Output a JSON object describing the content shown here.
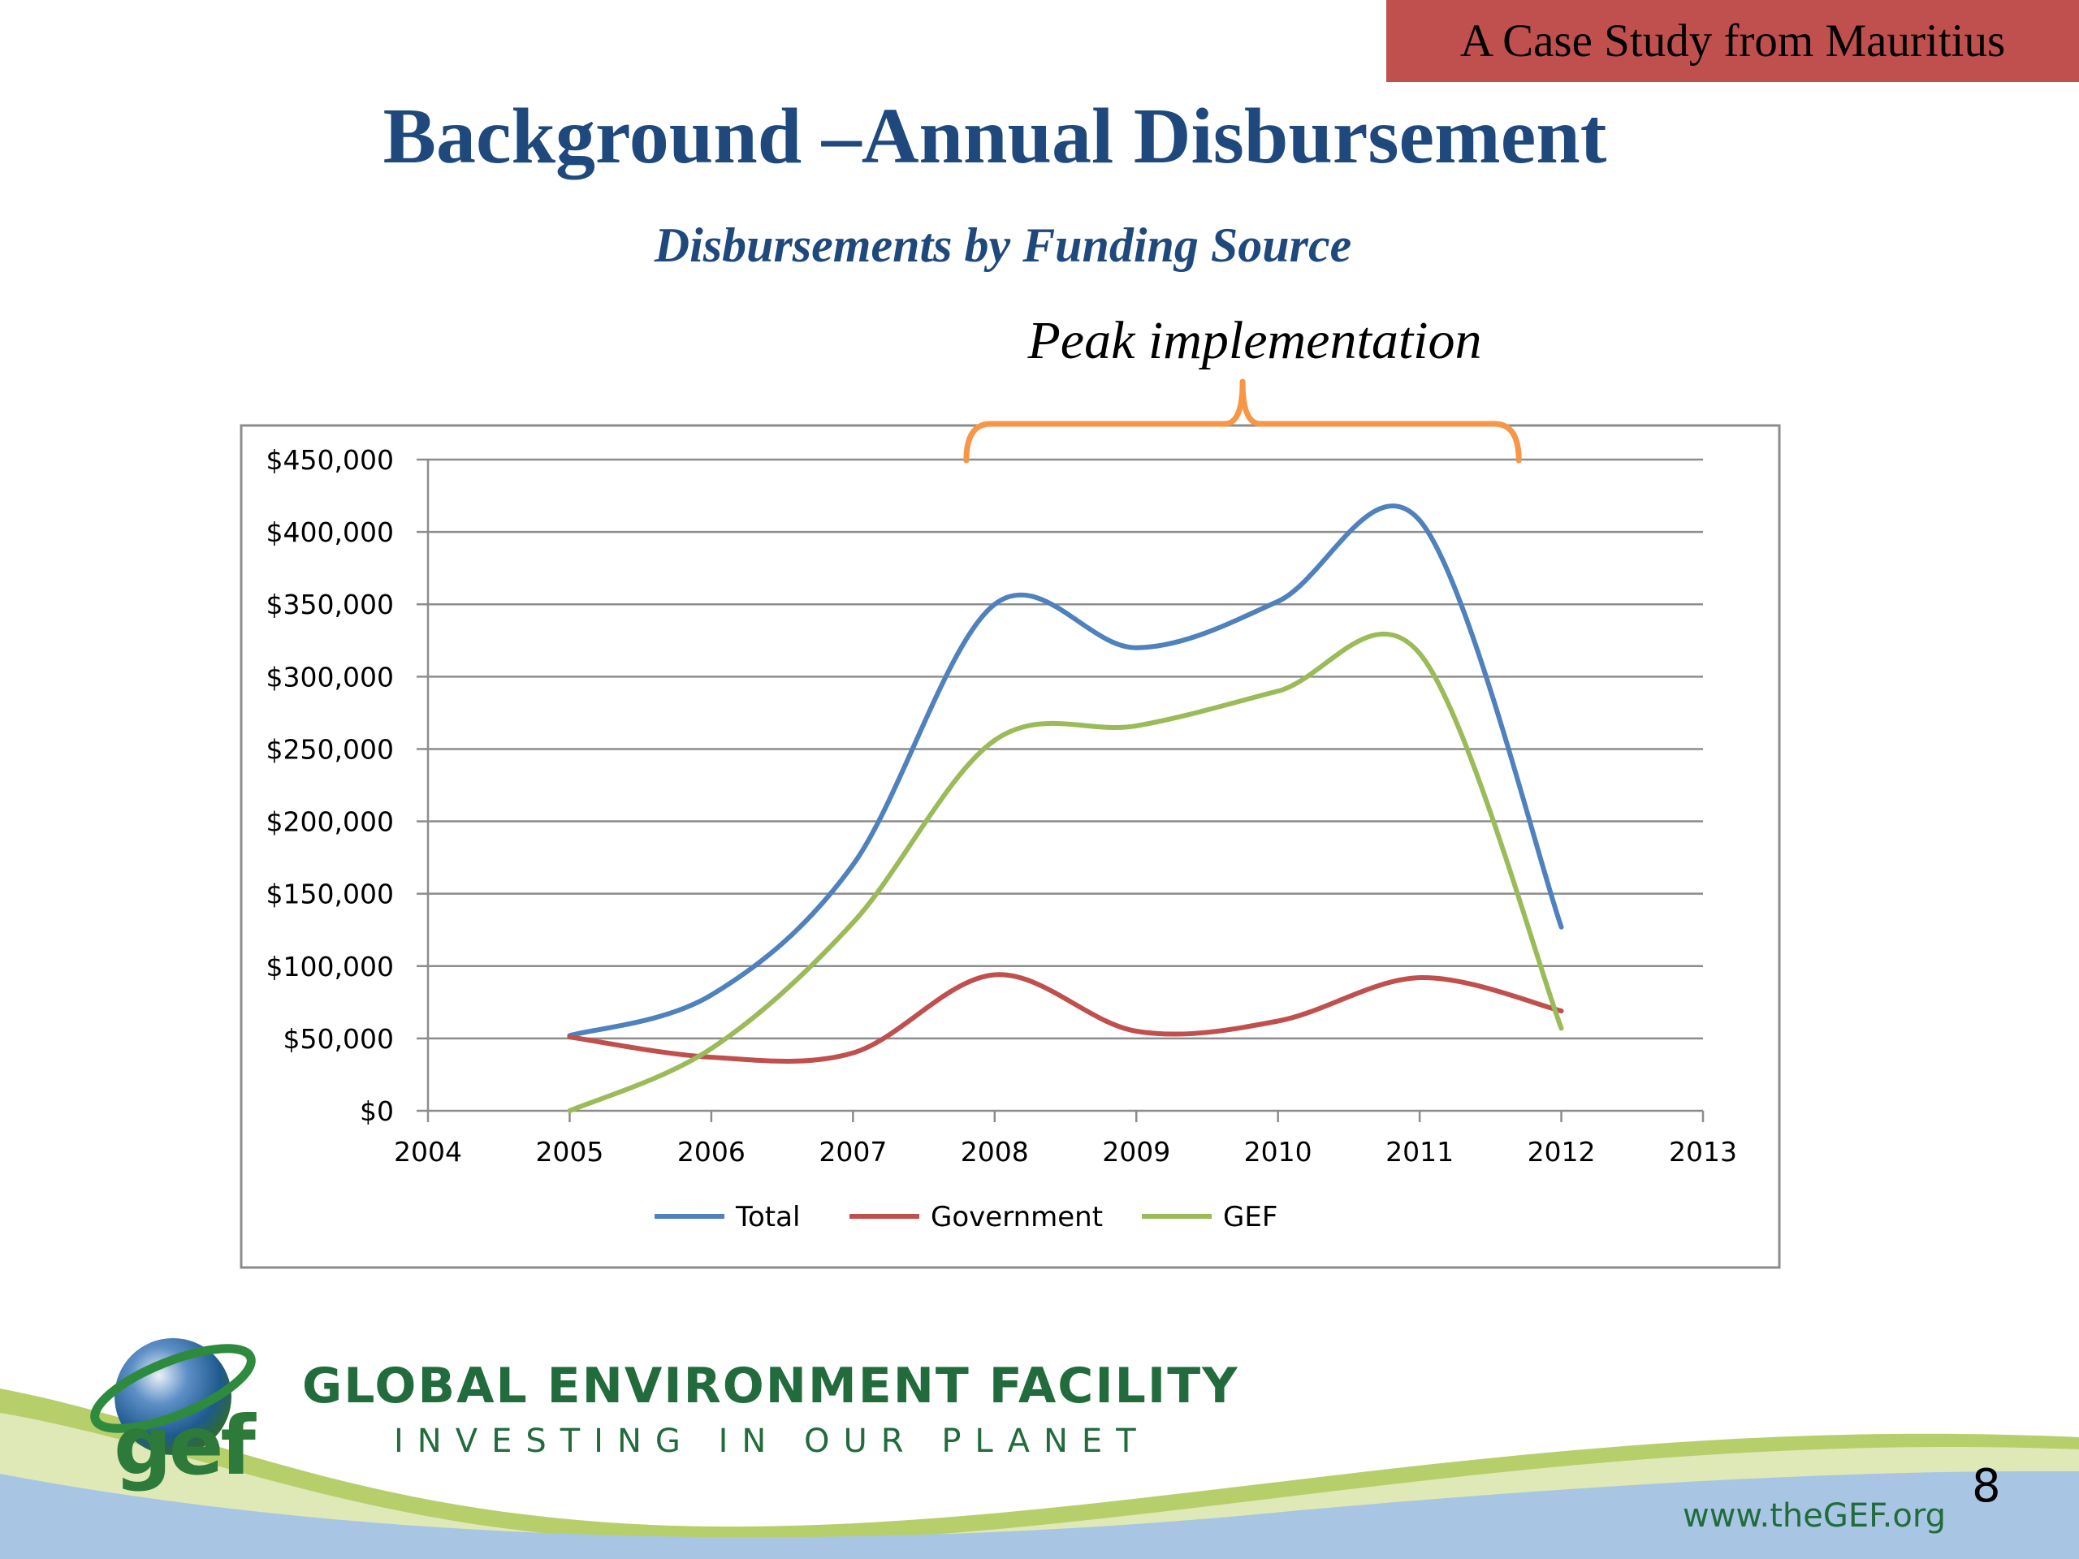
{
  "banner": {
    "text": "A Case Study from Mauritius",
    "color": "#c0504d"
  },
  "slide": {
    "title": "Background –Annual  Disbursement",
    "title_color": "#1f497d",
    "page_number": "8"
  },
  "annotation": {
    "text": "Peak implementation",
    "bracket_color": "#f79646",
    "x_range": [
      2007.8,
      2011.7
    ]
  },
  "chart_data": {
    "type": "line",
    "title": "Disbursements by Funding Source",
    "xlabel": "",
    "ylabel": "",
    "x": [
      2005,
      2006,
      2007,
      2008,
      2009,
      2010,
      2011,
      2012
    ],
    "xlim": [
      2004,
      2013
    ],
    "xticks": [
      "2004",
      "2005",
      "2006",
      "2007",
      "2008",
      "2009",
      "2010",
      "2011",
      "2012",
      "2013"
    ],
    "ylim": [
      0,
      450000
    ],
    "yticks": [
      "$0",
      "$50,000",
      "$100,000",
      "$150,000",
      "$200,000",
      "$250,000",
      "$300,000",
      "$350,000",
      "$400,000",
      "$450,000"
    ],
    "grid": "horizontal",
    "smoothed": true,
    "legend_position": "bottom",
    "series": [
      {
        "name": "Total",
        "color": "#4f81bd",
        "values": [
          52000,
          80000,
          170000,
          350000,
          320000,
          352000,
          408000,
          127000
        ]
      },
      {
        "name": "Government",
        "color": "#c0504d",
        "values": [
          51000,
          37000,
          40000,
          94000,
          55000,
          62000,
          92000,
          69000
        ]
      },
      {
        "name": "GEF",
        "color": "#9bbb59",
        "values": [
          0,
          43000,
          130000,
          256000,
          266000,
          290000,
          316000,
          57000
        ]
      }
    ]
  },
  "footer": {
    "org_name": "GLOBAL ENVIRONMENT FACILITY",
    "tagline": "INVESTING IN OUR PLANET",
    "logo_text": "gef",
    "website": "www.theGEF.org"
  }
}
